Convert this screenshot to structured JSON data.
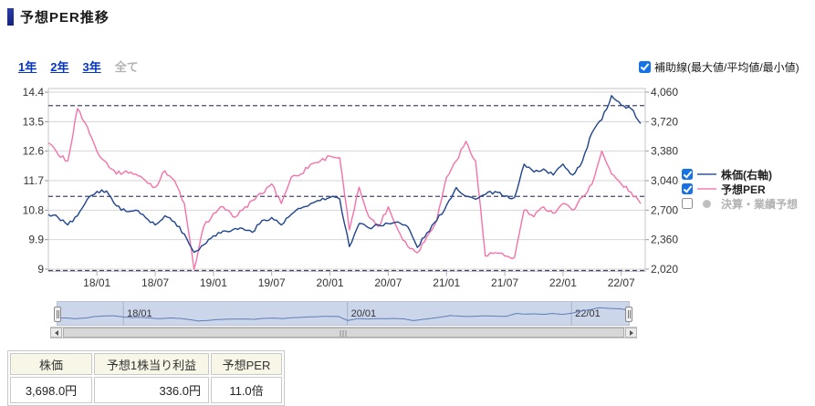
{
  "header": {
    "title": "予想PER推移"
  },
  "range_tabs": {
    "one_year": "1年",
    "two_year": "2年",
    "three_year": "3年",
    "all": "全て",
    "selected": "全て"
  },
  "aux_line_toggle": {
    "label": "補助線(最大値/平均値/最小値)",
    "checked": true
  },
  "legend": {
    "price": {
      "label": "株価(右軸)",
      "checked": true,
      "swatch_color": "#6680b3"
    },
    "per": {
      "label": "予想PER",
      "checked": true,
      "swatch_color": "#f79ec3"
    },
    "results": {
      "label": "決算・業績予想",
      "checked": false,
      "swatch_color": "#bfbfbf"
    }
  },
  "chart_data": {
    "type": "line",
    "title": "予想PER推移",
    "x": [
      "2017/08",
      "2017/09",
      "2017/10",
      "2017/11",
      "2017/12",
      "2018/01",
      "2018/02",
      "2018/03",
      "2018/04",
      "2018/05",
      "2018/06",
      "2018/07",
      "2018/08",
      "2018/09",
      "2018/10",
      "2018/11",
      "2018/12",
      "2019/01",
      "2019/02",
      "2019/03",
      "2019/04",
      "2019/05",
      "2019/06",
      "2019/07",
      "2019/08",
      "2019/09",
      "2019/10",
      "2019/11",
      "2019/12",
      "2020/01",
      "2020/02",
      "2020/03",
      "2020/04",
      "2020/05",
      "2020/06",
      "2020/07",
      "2020/08",
      "2020/09",
      "2020/10",
      "2020/11",
      "2020/12",
      "2021/01",
      "2021/02",
      "2021/03",
      "2021/04",
      "2021/05",
      "2021/06",
      "2021/07",
      "2021/08",
      "2021/09",
      "2021/10",
      "2021/11",
      "2021/12",
      "2022/01",
      "2022/02",
      "2022/03",
      "2022/04",
      "2022/05",
      "2022/06",
      "2022/07",
      "2022/08",
      "2022/09"
    ],
    "series": [
      {
        "name": "株価(右軸)",
        "axis": "right",
        "color": "#1e448f",
        "values": [
          2650,
          2615,
          2530,
          2635,
          2825,
          2915,
          2920,
          2750,
          2685,
          2700,
          2615,
          2530,
          2635,
          2565,
          2425,
          2215,
          2300,
          2405,
          2460,
          2475,
          2490,
          2445,
          2580,
          2615,
          2530,
          2650,
          2720,
          2775,
          2810,
          2845,
          2830,
          2280,
          2545,
          2495,
          2530,
          2545,
          2565,
          2510,
          2270,
          2440,
          2580,
          2755,
          2960,
          2860,
          2825,
          2880,
          2915,
          2860,
          2845,
          3230,
          3140,
          3175,
          3105,
          3230,
          3105,
          3265,
          3595,
          3740,
          4020,
          3910,
          3870,
          3698
        ]
      },
      {
        "name": "予想PER",
        "axis": "left",
        "color": "#f472ab",
        "values": [
          12.85,
          12.5,
          12.3,
          13.9,
          13.35,
          12.6,
          12.25,
          11.9,
          12.0,
          11.9,
          11.7,
          11.5,
          12.0,
          11.7,
          11.0,
          9.0,
          10.3,
          10.7,
          10.9,
          10.6,
          10.8,
          11.1,
          11.3,
          11.6,
          11.0,
          11.8,
          11.9,
          12.2,
          12.3,
          12.45,
          12.4,
          10.2,
          11.5,
          10.6,
          10.3,
          10.9,
          10.2,
          9.7,
          9.5,
          10.0,
          10.5,
          11.8,
          12.3,
          12.9,
          12.3,
          9.4,
          9.5,
          9.4,
          9.35,
          10.8,
          10.6,
          10.9,
          10.7,
          11.0,
          10.8,
          11.2,
          11.6,
          12.6,
          11.9,
          11.6,
          11.35,
          11.0
        ]
      }
    ],
    "left_axis": {
      "name": "予想PER",
      "ticks": [
        "14.4",
        "13.5",
        "12.6",
        "11.7",
        "10.8",
        "9.9",
        "9"
      ],
      "min": 9,
      "max": 14.4
    },
    "right_axis": {
      "name": "株価",
      "ticks": [
        "4,060",
        "3,720",
        "3,380",
        "3,040",
        "2,700",
        "2,360",
        "2,020"
      ],
      "min": 2020,
      "max": 4060
    },
    "x_ticks": [
      "18/01",
      "18/07",
      "19/01",
      "19/07",
      "20/01",
      "20/07",
      "21/01",
      "21/07",
      "22/01",
      "22/07"
    ],
    "auxiliary_lines": {
      "max": 13.99,
      "avg": 11.22,
      "min": 8.95,
      "style": "dashed",
      "color": "#45456b"
    },
    "grid": "horizontal-only",
    "legend_position": "right"
  },
  "navigator": {
    "labels": [
      "18/01",
      "20/01",
      "22/01"
    ]
  },
  "summary_table": {
    "headers": [
      "株価",
      "予想1株当り利益",
      "予想PER"
    ],
    "rows": [
      [
        "3,698.0円",
        "336.0円",
        "11.0倍"
      ]
    ]
  }
}
